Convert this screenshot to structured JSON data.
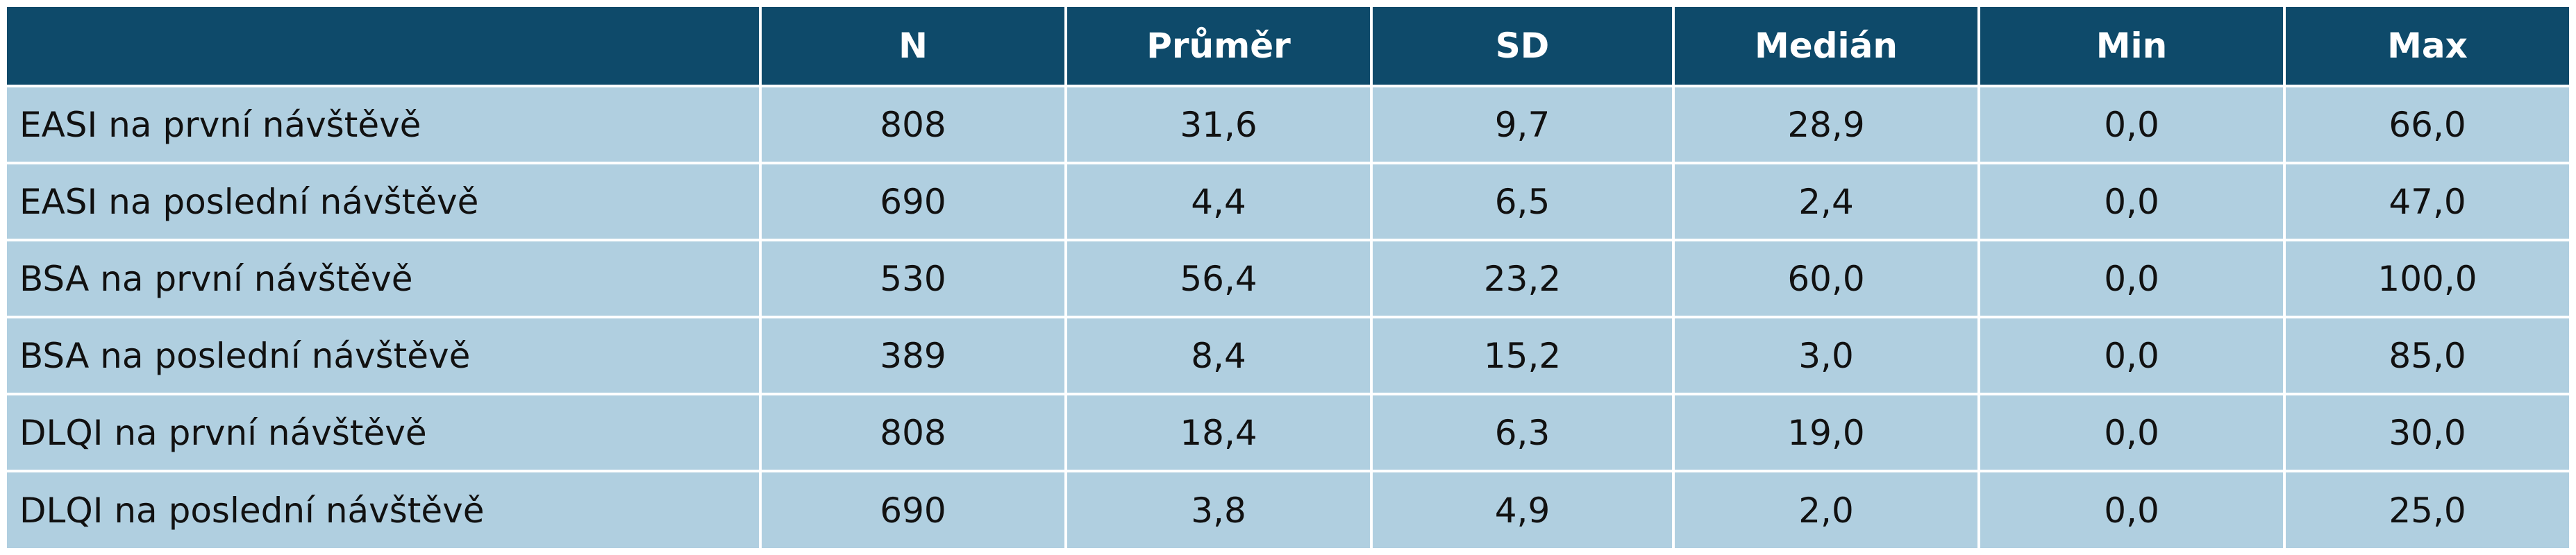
{
  "table": {
    "headers": [
      "",
      "N",
      "Průměr",
      "SD",
      "Medián",
      "Min",
      "Max"
    ],
    "rows": [
      [
        "EASI na první návštěvě",
        "808",
        "31,6",
        "9,7",
        "28,9",
        "0,0",
        "66,0"
      ],
      [
        "EASI na poslední návštěvě",
        "690",
        "4,4",
        "6,5",
        "2,4",
        "0,0",
        "47,0"
      ],
      [
        "BSA na první návštěvě",
        "530",
        "56,4",
        "23,2",
        "60,0",
        "0,0",
        "100,0"
      ],
      [
        "BSA na poslední návštěvě",
        "389",
        "8,4",
        "15,2",
        "3,0",
        "0,0",
        "85,0"
      ],
      [
        "DLQI na první návštěvě",
        "808",
        "18,4",
        "6,3",
        "19,0",
        "0,0",
        "30,0"
      ],
      [
        "DLQI na poslední návštěvě",
        "690",
        "3,8",
        "4,9",
        "2,0",
        "0,0",
        "25,0"
      ]
    ]
  },
  "colors": {
    "header_bg": "#0e4a6a",
    "header_text": "#ffffff",
    "cell_bg": "#b0cfe0",
    "grid_line": "#ffffff"
  }
}
